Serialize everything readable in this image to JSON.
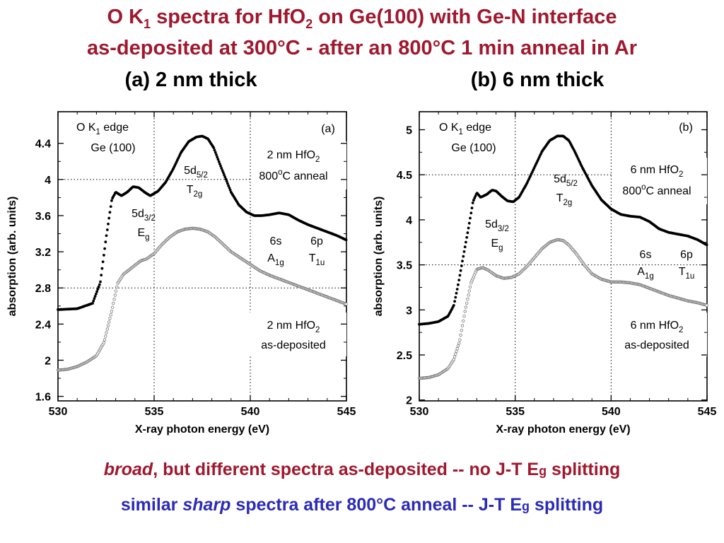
{
  "slide": {
    "title_line1_a": "O K",
    "title_line1_sub1": "1",
    "title_line1_b": " spectra for HfO",
    "title_line1_sub2": "2",
    "title_line1_c": " on Ge(100) with Ge-N interface",
    "title_line2": "as-deposited at 300°C - after an 800°C 1 min anneal in Ar",
    "subhead_a": "(a) 2 nm thick",
    "subhead_b": "(b) 6 nm thick",
    "bottom1_italic": "broad",
    "bottom1_rest": ", but different spectra as-deposited -- no J-T E",
    "bottom1_sub": "g",
    "bottom1_end": " splitting",
    "bottom2_start": "similar ",
    "bottom2_italic": "sharp",
    "bottom2_rest": " spectra after 800°C anneal -- J-T E",
    "bottom2_sub": "g",
    "bottom2_end": " splitting",
    "colors": {
      "title": "#a0182e",
      "bottom2": "#2b2bb8",
      "annealed": "#000000",
      "asdep": "#888888"
    }
  },
  "chart_data": [
    {
      "type": "scatter",
      "panel_label": "(a)",
      "xlabel": "X-ray photon energy (eV)",
      "ylabel": "absorption  (arb. units)",
      "xlim": [
        530,
        545
      ],
      "ylim": [
        1.55,
        4.75
      ],
      "xticks": [
        530,
        535,
        540,
        545
      ],
      "yticks": [
        1.6,
        2,
        2.4,
        2.8,
        3.2,
        3.6,
        4,
        4.4
      ],
      "ytick_labels": [
        "1.6",
        "2",
        "2.4",
        "2.8",
        "3.2",
        "3.6",
        "4",
        "4.4"
      ],
      "grid": "dotted at x=535, 540 and y=2.8, 4.0",
      "series": [
        {
          "style": "filled",
          "x": [
            530,
            531,
            531.8,
            532.2,
            532.5,
            532.8,
            533,
            533.3,
            533.6,
            533.9,
            534.2,
            534.5,
            534.8,
            535.2,
            535.6,
            536,
            536.4,
            536.8,
            537.2,
            537.5,
            537.8,
            538.1,
            538.4,
            538.7,
            539,
            539.4,
            539.8,
            540.2,
            540.6,
            541,
            541.5,
            542,
            542.5,
            543,
            543.5,
            544,
            544.5,
            545
          ],
          "y": [
            2.56,
            2.57,
            2.63,
            2.86,
            3.35,
            3.78,
            3.86,
            3.82,
            3.86,
            3.92,
            3.91,
            3.86,
            3.82,
            3.87,
            3.97,
            4.12,
            4.3,
            4.42,
            4.47,
            4.48,
            4.45,
            4.35,
            4.18,
            4.02,
            3.86,
            3.72,
            3.64,
            3.6,
            3.6,
            3.61,
            3.63,
            3.61,
            3.55,
            3.5,
            3.46,
            3.42,
            3.38,
            3.33
          ]
        },
        {
          "style": "open",
          "x": [
            530,
            530.5,
            531,
            531.5,
            532,
            532.4,
            532.8,
            533.1,
            533.4,
            533.7,
            534,
            534.3,
            534.6,
            535,
            535.4,
            535.8,
            536.2,
            536.6,
            537,
            537.4,
            537.8,
            538.2,
            538.6,
            539,
            539.5,
            540,
            540.5,
            541,
            541.5,
            542,
            542.5,
            543,
            543.5,
            544,
            544.5,
            545
          ],
          "y": [
            1.89,
            1.9,
            1.93,
            1.98,
            2.05,
            2.2,
            2.55,
            2.85,
            2.95,
            3.0,
            3.05,
            3.1,
            3.12,
            3.18,
            3.28,
            3.36,
            3.42,
            3.45,
            3.46,
            3.45,
            3.42,
            3.36,
            3.28,
            3.2,
            3.13,
            3.06,
            2.99,
            2.94,
            2.9,
            2.86,
            2.82,
            2.78,
            2.74,
            2.7,
            2.66,
            2.62
          ]
        }
      ],
      "annotations": {
        "edge": [
          "O K",
          "1",
          " edge"
        ],
        "substrate": "Ge (100)",
        "t2g": [
          "5d",
          "5/2",
          "T",
          "2g"
        ],
        "eg": [
          "5d",
          "3/2",
          "E",
          "g"
        ],
        "a1g": [
          "6s",
          "A",
          "1g"
        ],
        "t1u": [
          "6p",
          "T",
          "1u"
        ],
        "annealed": [
          "2 nm HfO",
          "2",
          "800",
          "o",
          "C anneal"
        ],
        "asdep": [
          "2 nm HfO",
          "2",
          "as-deposited"
        ]
      }
    },
    {
      "type": "scatter",
      "panel_label": "(b)",
      "xlabel": "X-ray photon energy (eV)",
      "ylabel": "absorption  (arb. units)",
      "xlim": [
        530,
        545
      ],
      "ylim": [
        1.99,
        5.2
      ],
      "xticks": [
        530,
        535,
        540,
        545
      ],
      "yticks": [
        2,
        2.5,
        3,
        3.5,
        4,
        4.5,
        5
      ],
      "ytick_labels": [
        "2",
        "2.5",
        "3",
        "3.5",
        "4",
        "4.5",
        "5"
      ],
      "grid": "dotted at x=535, 540 and y=3.5, 4.5",
      "series": [
        {
          "style": "filled",
          "x": [
            530,
            530.5,
            531,
            531.5,
            531.8,
            532,
            532.3,
            532.6,
            532.8,
            533,
            533.2,
            533.5,
            533.8,
            534,
            534.3,
            534.6,
            534.9,
            535.2,
            535.6,
            536,
            536.4,
            536.8,
            537.2,
            537.5,
            537.8,
            538.1,
            538.5,
            539,
            539.5,
            540,
            540.5,
            541,
            541.5,
            542,
            542.5,
            543,
            543.5,
            544,
            544.5,
            545
          ],
          "y": [
            2.84,
            2.85,
            2.87,
            2.93,
            3.05,
            3.25,
            3.6,
            3.95,
            4.2,
            4.3,
            4.25,
            4.28,
            4.33,
            4.32,
            4.26,
            4.21,
            4.2,
            4.25,
            4.4,
            4.58,
            4.76,
            4.88,
            4.93,
            4.93,
            4.88,
            4.76,
            4.58,
            4.38,
            4.22,
            4.12,
            4.06,
            4.04,
            4.03,
            3.98,
            3.9,
            3.86,
            3.84,
            3.82,
            3.78,
            3.72
          ]
        },
        {
          "style": "open",
          "x": [
            530,
            530.5,
            531,
            531.5,
            531.8,
            532.1,
            532.4,
            532.7,
            533,
            533.3,
            533.6,
            534,
            534.4,
            534.8,
            535.2,
            535.6,
            536,
            536.4,
            536.8,
            537.2,
            537.5,
            537.8,
            538.2,
            538.6,
            539,
            539.5,
            540,
            540.5,
            541,
            541.5,
            542,
            542.5,
            543,
            543.5,
            544,
            544.5,
            545
          ],
          "y": [
            2.24,
            2.25,
            2.28,
            2.35,
            2.45,
            2.65,
            3.0,
            3.3,
            3.45,
            3.47,
            3.44,
            3.38,
            3.35,
            3.36,
            3.4,
            3.48,
            3.58,
            3.68,
            3.75,
            3.78,
            3.77,
            3.72,
            3.62,
            3.5,
            3.4,
            3.34,
            3.31,
            3.31,
            3.3,
            3.28,
            3.24,
            3.2,
            3.16,
            3.13,
            3.1,
            3.08,
            3.05
          ]
        }
      ],
      "annotations": {
        "edge": [
          "O K",
          "1",
          " edge"
        ],
        "substrate": "Ge (100)",
        "t2g": [
          "5d",
          "5/2",
          "T",
          "2g"
        ],
        "eg": [
          "5d",
          "3/2",
          "E",
          "g"
        ],
        "a1g": [
          "6s",
          "A",
          "1g"
        ],
        "t1u": [
          "6p",
          "T",
          "1u"
        ],
        "annealed": [
          "6 nm HfO",
          "2",
          "800",
          "o",
          "C anneal"
        ],
        "asdep": [
          "6 nm HfO",
          "2",
          "as-deposited"
        ]
      }
    }
  ]
}
